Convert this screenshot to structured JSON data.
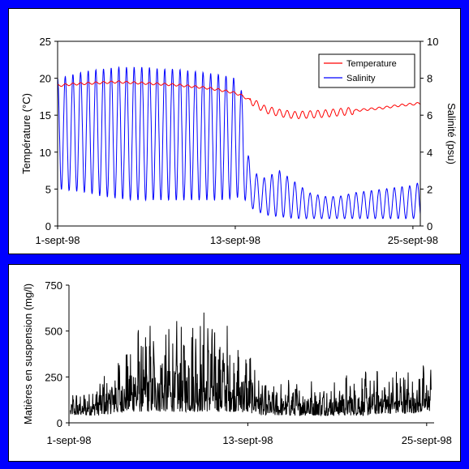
{
  "chart_data": [
    {
      "type": "line",
      "xlabel": "",
      "ylabel_left": "Température (°C)",
      "ylabel_right": "Salinité (psu)",
      "x_tick_labels": [
        "1-sept-98",
        "13-sept-98",
        "25-sept-98"
      ],
      "x_ticks_days": [
        0,
        12,
        24
      ],
      "xlim_days": [
        0,
        24.5
      ],
      "ylim_left": [
        0,
        25
      ],
      "yticks_left": [
        0,
        5,
        10,
        15,
        20,
        25
      ],
      "ylim_right": [
        0,
        10
      ],
      "yticks_right": [
        0,
        2,
        4,
        6,
        8,
        10
      ],
      "grid": false,
      "legend": "top-right",
      "series": [
        {
          "name": "Temperature",
          "axis": "left",
          "color": "#ff0000",
          "x_days": [
            0,
            1,
            2,
            3,
            4,
            5,
            6,
            7,
            8,
            9,
            10,
            11,
            12,
            12.5,
            13,
            13.5,
            14,
            15,
            16,
            17,
            18,
            19,
            20,
            21,
            22,
            23,
            24,
            24.5
          ],
          "values": [
            19.0,
            19.2,
            19.3,
            19.4,
            19.5,
            19.4,
            19.3,
            19.2,
            19.1,
            18.9,
            18.7,
            18.4,
            18.0,
            17.6,
            17.0,
            16.4,
            15.8,
            15.3,
            15.0,
            15.1,
            15.2,
            15.4,
            15.6,
            15.8,
            16.0,
            16.3,
            16.5,
            16.6
          ]
        },
        {
          "name": "Salinity",
          "axis": "right",
          "color": "#0000ff",
          "x_days": [
            0,
            1,
            2,
            3,
            4,
            5,
            6,
            7,
            8,
            9,
            10,
            11,
            12,
            12.5,
            13,
            14,
            15,
            16,
            17,
            18,
            19,
            20,
            21,
            22,
            23,
            24,
            24.5
          ],
          "max_values": [
            8.0,
            8.2,
            8.4,
            8.5,
            8.6,
            8.6,
            8.6,
            8.5,
            8.5,
            8.4,
            8.3,
            8.2,
            8.0,
            7.2,
            3.0,
            2.6,
            3.0,
            2.4,
            1.8,
            1.6,
            1.6,
            1.8,
            1.9,
            2.0,
            2.1,
            2.2,
            2.4
          ],
          "min_values": [
            2.0,
            1.9,
            1.8,
            1.6,
            1.5,
            1.4,
            1.4,
            1.4,
            1.4,
            1.4,
            1.4,
            1.4,
            1.5,
            1.6,
            1.0,
            0.6,
            0.5,
            0.4,
            0.4,
            0.4,
            0.4,
            0.4,
            0.4,
            0.4,
            0.4,
            0.4,
            0.4
          ]
        }
      ]
    },
    {
      "type": "line",
      "xlabel": "",
      "ylabel": "Matières en suspension (mg/l)",
      "x_tick_labels": [
        "1-sept-98",
        "13-sept-98",
        "25-sept-98"
      ],
      "x_ticks_days": [
        0,
        12,
        24
      ],
      "xlim_days": [
        0,
        24.5
      ],
      "ylim": [
        0,
        750
      ],
      "yticks": [
        0,
        250,
        500,
        750
      ],
      "grid": false,
      "series": [
        {
          "name": "",
          "color": "#000000",
          "x_days": [
            0,
            1,
            2,
            3,
            4,
            5,
            6,
            7,
            8,
            9,
            10,
            11,
            12,
            12.5,
            13,
            14,
            15,
            16,
            17,
            18,
            19,
            20,
            21,
            22,
            23,
            24,
            24.5
          ],
          "peak_values": [
            170,
            190,
            280,
            380,
            480,
            600,
            560,
            550,
            650,
            640,
            600,
            560,
            440,
            430,
            230,
            230,
            250,
            260,
            230,
            280,
            300,
            290,
            300,
            310,
            320,
            330,
            380
          ],
          "base_values": [
            40,
            40,
            40,
            50,
            60,
            60,
            60,
            60,
            60,
            60,
            60,
            60,
            55,
            50,
            40,
            40,
            40,
            40,
            40,
            40,
            40,
            40,
            50,
            50,
            50,
            60,
            70
          ]
        }
      ]
    }
  ]
}
